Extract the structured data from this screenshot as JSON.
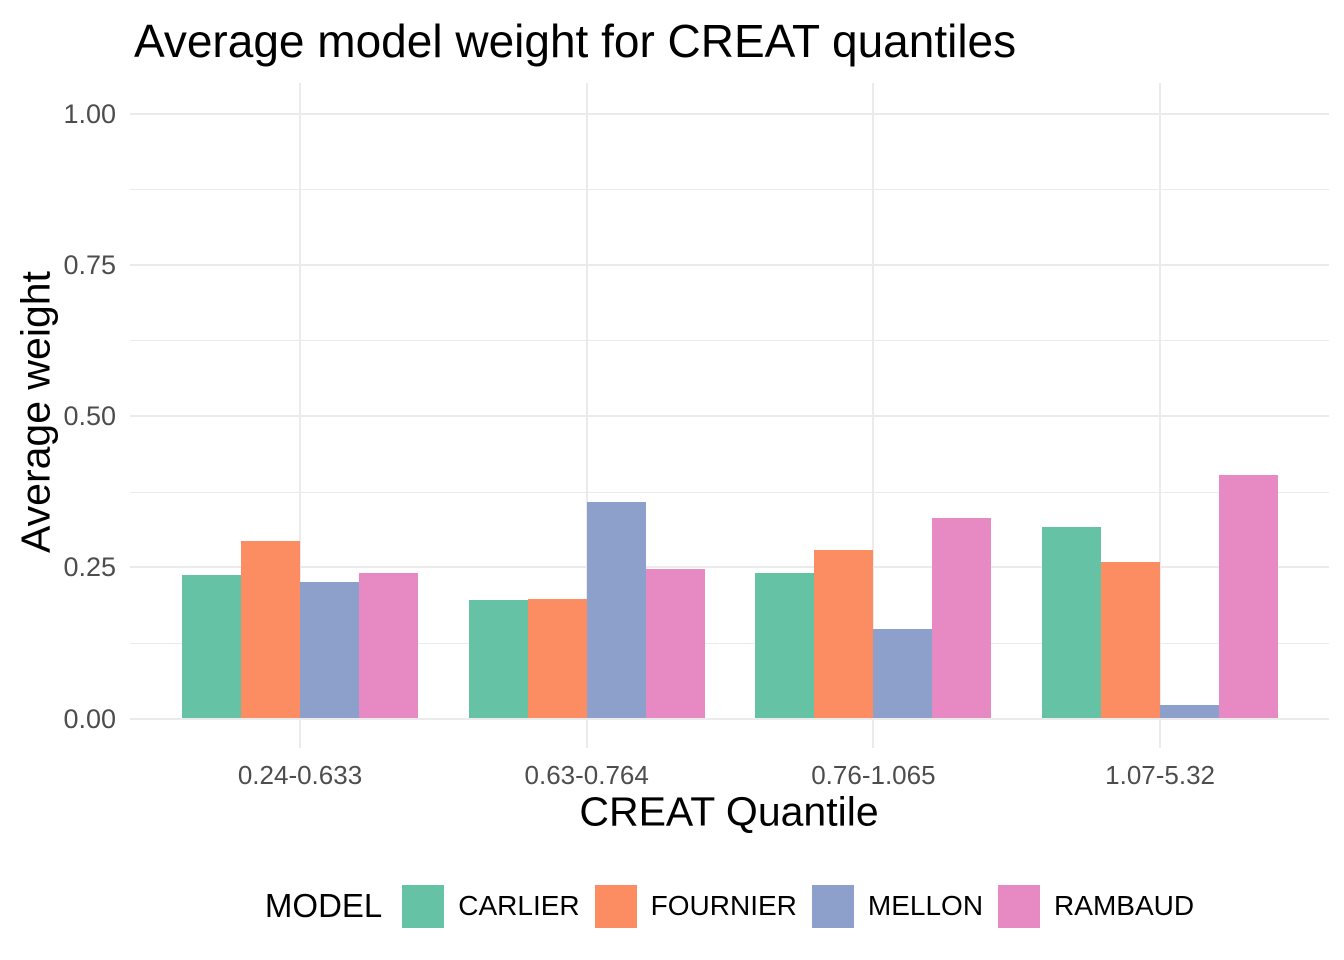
{
  "chart_data": {
    "type": "bar",
    "bar_mode": "grouped",
    "title": "Average model weight for CREAT quantiles",
    "xlabel": "CREAT Quantile",
    "ylabel": "Average weight",
    "categories": [
      "0.24-0.633",
      "0.63-0.764",
      "0.76-1.065",
      "1.07-5.32"
    ],
    "series": [
      {
        "name": "CARLIER",
        "color": "#66C2A5",
        "values": [
          0.238,
          0.196,
          0.241,
          0.316
        ]
      },
      {
        "name": "FOURNIER",
        "color": "#FC8D62",
        "values": [
          0.293,
          0.197,
          0.279,
          0.258
        ]
      },
      {
        "name": "MELLON",
        "color": "#8DA0CB",
        "values": [
          0.226,
          0.358,
          0.148,
          0.022
        ]
      },
      {
        "name": "RAMBAUD",
        "color": "#E78AC3",
        "values": [
          0.241,
          0.247,
          0.332,
          0.403
        ]
      }
    ],
    "ylim": [
      0,
      1
    ],
    "y_ticks": [
      0,
      0.25,
      0.5,
      0.75,
      1.0
    ],
    "y_tick_labels": [
      "0.00",
      "0.25",
      "0.50",
      "0.75",
      "1.00"
    ],
    "y_minor_ticks": [
      0.125,
      0.375,
      0.625,
      0.875
    ],
    "grid": true,
    "legend_title": "MODEL",
    "legend_position": "bottom",
    "text_color_ticks": "#4d4d4d",
    "gridline_color": "#ebebeb",
    "background_color": "#ffffff"
  }
}
